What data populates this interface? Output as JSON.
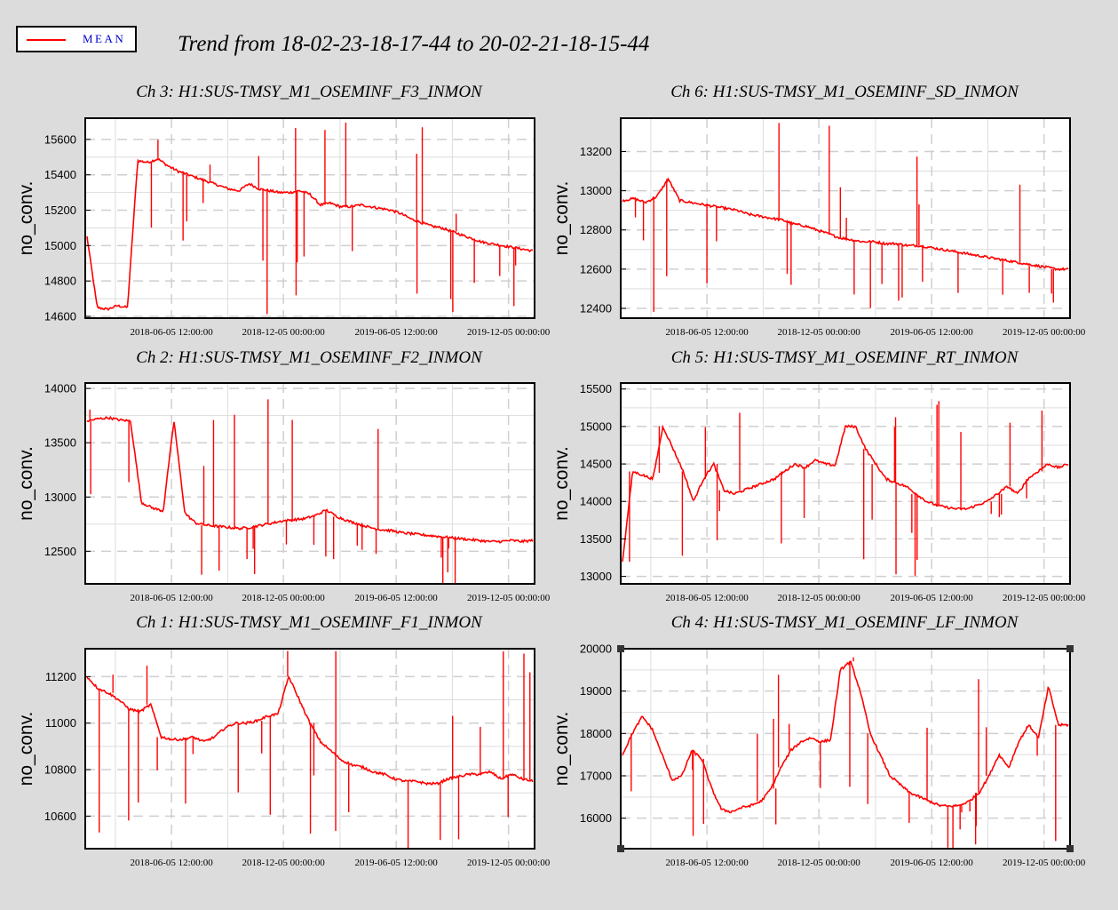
{
  "title": "Trend from 18-02-23-18-17-44 to 20-02-21-18-15-44",
  "legend": {
    "label": "MEAN",
    "color": "#ff0000"
  },
  "chart_data": [
    {
      "type": "line",
      "title": "Ch 3: H1:SUS-TMSY_M1_OSEMINF_F3_INMON",
      "ylabel": "no_conv.",
      "x_tick_labels": [
        "2018-06-05 12:00:00",
        "2018-12-05 00:00:00",
        "2019-06-05 12:00:00",
        "2019-12-05 00:00:00"
      ],
      "y_ticks": [
        14600,
        14800,
        15000,
        15200,
        15400,
        15600
      ],
      "ylim": [
        14590,
        15720
      ],
      "series": [
        {
          "values": [
            15050,
            14650,
            14640,
            14660,
            14650,
            15480,
            15470,
            15490,
            15450,
            15420,
            15400,
            15380,
            15360,
            15340,
            15320,
            15310,
            15350,
            15320,
            15310,
            15300,
            15300,
            15310,
            15290,
            15230,
            15240,
            15220,
            15220,
            15230,
            15220,
            15210,
            15200,
            15180,
            15150,
            15130,
            15110,
            15100,
            15080,
            15060,
            15040,
            15020,
            15010,
            15000,
            14990,
            14980,
            14970
          ]
        }
      ],
      "grid": true
    },
    {
      "type": "line",
      "title": "Ch 6: H1:SUS-TMSY_M1_OSEMINF_SD_INMON",
      "ylabel": "no_conv.",
      "x_tick_labels": [
        "2018-06-05 12:00:00",
        "2018-12-05 00:00:00",
        "2019-06-05 12:00:00",
        "2019-12-05 00:00:00"
      ],
      "y_ticks": [
        12400,
        12600,
        12800,
        13000,
        13200
      ],
      "ylim": [
        12350,
        13370
      ],
      "series": [
        {
          "values": [
            12950,
            12960,
            12940,
            12970,
            13060,
            12950,
            12940,
            12930,
            12920,
            12910,
            12900,
            12880,
            12870,
            12860,
            12850,
            12830,
            12820,
            12800,
            12780,
            12760,
            12750,
            12740,
            12740,
            12730,
            12730,
            12720,
            12720,
            12710,
            12700,
            12690,
            12680,
            12670,
            12660,
            12650,
            12640,
            12630,
            12620,
            12610,
            12600,
            12600
          ]
        }
      ],
      "grid": true
    },
    {
      "type": "line",
      "title": "Ch 2: H1:SUS-TMSY_M1_OSEMINF_F2_INMON",
      "ylabel": "no_conv.",
      "x_tick_labels": [
        "2018-06-05 12:00:00",
        "2018-12-05 00:00:00",
        "2019-06-05 12:00:00",
        "2019-12-05 00:00:00"
      ],
      "y_ticks": [
        12500,
        13000,
        13500,
        14000
      ],
      "ylim": [
        12200,
        14050
      ],
      "series": [
        {
          "values": [
            13700,
            13720,
            13730,
            13710,
            13700,
            12950,
            12900,
            12870,
            13700,
            12850,
            12760,
            12740,
            12730,
            12720,
            12710,
            12720,
            12740,
            12760,
            12780,
            12790,
            12800,
            12830,
            12880,
            12820,
            12780,
            12750,
            12720,
            12700,
            12690,
            12670,
            12660,
            12650,
            12640,
            12630,
            12620,
            12610,
            12600,
            12590,
            12590,
            12600,
            12590,
            12600
          ]
        }
      ],
      "grid": true
    },
    {
      "type": "line",
      "title": "Ch 5: H1:SUS-TMSY_M1_OSEMINF_RT_INMON",
      "ylabel": "no_conv.",
      "x_tick_labels": [
        "2018-06-05 12:00:00",
        "2018-12-05 00:00:00",
        "2019-06-05 12:00:00",
        "2019-12-05 00:00:00"
      ],
      "y_ticks": [
        13000,
        13500,
        14000,
        14500,
        15000,
        15500
      ],
      "ylim": [
        12900,
        15580
      ],
      "series": [
        {
          "values": [
            13200,
            14400,
            14350,
            14300,
            15000,
            14700,
            14400,
            14000,
            14300,
            14500,
            14150,
            14100,
            14150,
            14200,
            14250,
            14300,
            14400,
            14500,
            14450,
            14550,
            14500,
            14480,
            15000,
            15000,
            14700,
            14500,
            14300,
            14250,
            14200,
            14100,
            14000,
            13950,
            13920,
            13900,
            13900,
            13950,
            14000,
            14100,
            14200,
            14100,
            14300,
            14400,
            14500,
            14450,
            14500
          ]
        }
      ],
      "grid": true
    },
    {
      "type": "line",
      "title": "Ch 1: H1:SUS-TMSY_M1_OSEMINF_F1_INMON",
      "ylabel": "no_conv.",
      "x_tick_labels": [
        "2018-06-05 12:00:00",
        "2018-12-05 00:00:00",
        "2019-06-05 12:00:00",
        "2019-12-05 00:00:00"
      ],
      "y_ticks": [
        10600,
        10800,
        11000,
        11200
      ],
      "ylim": [
        10460,
        11320
      ],
      "series": [
        {
          "values": [
            11200,
            11150,
            11130,
            11100,
            11060,
            11050,
            11080,
            10940,
            10930,
            10930,
            10940,
            10920,
            10940,
            10980,
            11000,
            11000,
            11010,
            11030,
            11040,
            11200,
            11100,
            11000,
            10920,
            10880,
            10840,
            10820,
            10810,
            10790,
            10780,
            10760,
            10750,
            10750,
            10740,
            10740,
            10760,
            10770,
            10780,
            10780,
            10790,
            10760,
            10780,
            10760,
            10750
          ]
        }
      ],
      "grid": true
    },
    {
      "type": "line",
      "title": "Ch 4: H1:SUS-TMSY_M1_OSEMINF_LF_INMON",
      "ylabel": "no_conv.",
      "x_tick_labels": [
        "2018-06-05 12:00:00",
        "2018-12-05 00:00:00",
        "2019-06-05 12:00:00",
        "2019-12-05 00:00:00"
      ],
      "y_ticks": [
        16000,
        17000,
        18000,
        19000,
        20000
      ],
      "ylim": [
        15280,
        20000
      ],
      "series": [
        {
          "values": [
            17500,
            18000,
            18400,
            18100,
            17500,
            16900,
            17000,
            17600,
            17400,
            16700,
            16200,
            16150,
            16250,
            16300,
            16400,
            16700,
            17200,
            17600,
            17800,
            17900,
            17800,
            17850,
            19500,
            19700,
            19000,
            18000,
            17500,
            17000,
            16800,
            16600,
            16500,
            16400,
            16300,
            16280,
            16300,
            16400,
            16600,
            17000,
            17500,
            17200,
            17800,
            18200,
            17900,
            19100,
            18200,
            18200
          ]
        }
      ],
      "grid": true
    }
  ]
}
